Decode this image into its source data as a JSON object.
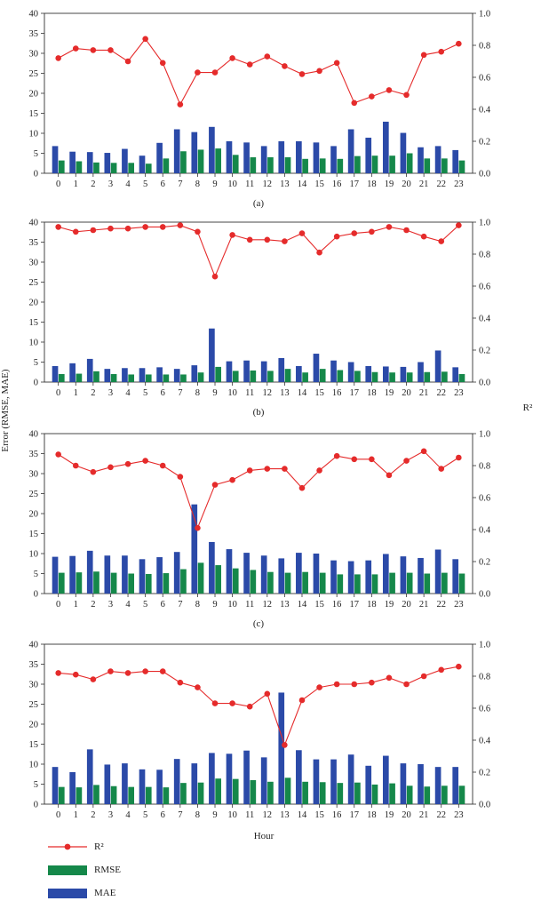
{
  "figure": {
    "y_left_label": "Error (RMSE, MAE)",
    "y_right_label": "R²",
    "x_label": "Hour",
    "colors": {
      "mae": "#2b4aa8",
      "rmse": "#15884a",
      "r2": "#e52b2b"
    }
  },
  "legend": {
    "r2": "R²",
    "rmse": "RMSE",
    "mae": "MAE"
  },
  "chart_data": [
    {
      "type": "bar",
      "panel_label": "(a)",
      "x": [
        0,
        1,
        2,
        3,
        4,
        5,
        6,
        7,
        8,
        9,
        10,
        11,
        12,
        13,
        14,
        15,
        16,
        17,
        18,
        19,
        20,
        21,
        22,
        23
      ],
      "ylim": [
        0,
        40
      ],
      "y2lim": [
        0,
        1.0
      ],
      "yticks": [
        "0",
        "5",
        "10",
        "15",
        "20",
        "25",
        "30",
        "35",
        "40"
      ],
      "y2ticks": [
        "0.0",
        "0.2",
        "0.4",
        "0.6",
        "0.8",
        "1.0"
      ],
      "series": [
        {
          "name": "MAE",
          "kind": "bar",
          "values": [
            6.8,
            5.4,
            5.3,
            5.1,
            6.1,
            4.4,
            7.6,
            11.0,
            10.3,
            11.6,
            8.0,
            7.7,
            6.8,
            8.0,
            8.0,
            7.7,
            6.8,
            11.0,
            8.9,
            12.9,
            10.1,
            6.5,
            6.8,
            5.8
          ]
        },
        {
          "name": "RMSE",
          "kind": "bar",
          "values": [
            3.2,
            3.0,
            2.7,
            2.6,
            2.6,
            2.4,
            3.7,
            5.5,
            5.9,
            6.2,
            4.6,
            4.0,
            4.0,
            4.0,
            3.6,
            3.7,
            3.6,
            4.3,
            4.4,
            4.4,
            5.0,
            3.7,
            3.7,
            3.2
          ]
        },
        {
          "name": "R²",
          "kind": "line",
          "axis": "right",
          "values": [
            0.72,
            0.78,
            0.77,
            0.77,
            0.7,
            0.84,
            0.69,
            0.43,
            0.63,
            0.63,
            0.72,
            0.68,
            0.73,
            0.67,
            0.62,
            0.64,
            0.69,
            0.44,
            0.48,
            0.52,
            0.49,
            0.74,
            0.76,
            0.81
          ]
        }
      ]
    },
    {
      "type": "bar",
      "panel_label": "(b)",
      "x": [
        0,
        1,
        2,
        3,
        4,
        5,
        6,
        7,
        8,
        9,
        10,
        11,
        12,
        13,
        14,
        15,
        16,
        17,
        18,
        19,
        20,
        21,
        22,
        23
      ],
      "ylim": [
        0,
        40
      ],
      "y2lim": [
        0,
        1.0
      ],
      "yticks": [
        "0",
        "5",
        "10",
        "15",
        "20",
        "25",
        "30",
        "35",
        "40"
      ],
      "y2ticks": [
        "0.0",
        "0.2",
        "0.4",
        "0.6",
        "0.8",
        "1.0"
      ],
      "series": [
        {
          "name": "MAE",
          "kind": "bar",
          "values": [
            4.0,
            4.7,
            5.8,
            3.3,
            3.5,
            3.5,
            3.7,
            3.3,
            4.2,
            13.4,
            5.2,
            5.4,
            5.2,
            6.0,
            4.0,
            7.1,
            5.4,
            5.0,
            4.0,
            3.9,
            3.8,
            5.0,
            7.9,
            3.7
          ]
        },
        {
          "name": "RMSE",
          "kind": "bar",
          "values": [
            2.0,
            2.1,
            2.7,
            2.0,
            1.9,
            1.9,
            1.9,
            1.9,
            2.4,
            3.8,
            2.8,
            2.9,
            2.8,
            3.3,
            2.4,
            3.3,
            3.0,
            2.8,
            2.5,
            2.4,
            2.4,
            2.5,
            2.6,
            2.0
          ]
        },
        {
          "name": "R²",
          "kind": "line",
          "axis": "right",
          "values": [
            0.97,
            0.94,
            0.95,
            0.96,
            0.96,
            0.97,
            0.97,
            0.98,
            0.94,
            0.66,
            0.92,
            0.89,
            0.89,
            0.88,
            0.93,
            0.81,
            0.91,
            0.93,
            0.94,
            0.97,
            0.95,
            0.91,
            0.88,
            0.98
          ]
        }
      ]
    },
    {
      "type": "bar",
      "panel_label": "(c)",
      "x": [
        0,
        1,
        2,
        3,
        4,
        5,
        6,
        7,
        8,
        9,
        10,
        11,
        12,
        13,
        14,
        15,
        16,
        17,
        18,
        19,
        20,
        21,
        22,
        23
      ],
      "ylim": [
        0,
        40
      ],
      "y2lim": [
        0,
        1.0
      ],
      "yticks": [
        "0",
        "5",
        "10",
        "15",
        "20",
        "25",
        "30",
        "35",
        "40"
      ],
      "y2ticks": [
        "0.0",
        "0.2",
        "0.4",
        "0.6",
        "0.8",
        "1.0"
      ],
      "series": [
        {
          "name": "MAE",
          "kind": "bar",
          "values": [
            9.2,
            9.4,
            10.7,
            9.5,
            9.5,
            8.6,
            9.1,
            10.4,
            22.3,
            12.9,
            11.1,
            10.2,
            9.5,
            8.8,
            10.2,
            10.0,
            8.3,
            8.1,
            8.3,
            9.9,
            9.3,
            8.9,
            11.0,
            8.6
          ]
        },
        {
          "name": "RMSE",
          "kind": "bar",
          "values": [
            5.2,
            5.3,
            5.5,
            5.2,
            5.0,
            4.9,
            5.1,
            6.1,
            7.7,
            7.1,
            6.3,
            5.9,
            5.4,
            5.2,
            5.4,
            5.2,
            4.8,
            4.8,
            4.8,
            5.2,
            5.2,
            5.0,
            5.2,
            5.0
          ]
        },
        {
          "name": "R²",
          "kind": "line",
          "axis": "right",
          "values": [
            0.87,
            0.8,
            0.76,
            0.79,
            0.81,
            0.83,
            0.8,
            0.73,
            0.41,
            0.68,
            0.71,
            0.77,
            0.78,
            0.78,
            0.66,
            0.77,
            0.86,
            0.84,
            0.84,
            0.74,
            0.83,
            0.89,
            0.78,
            0.85
          ]
        }
      ]
    },
    {
      "type": "bar",
      "panel_label": "(d)",
      "x": [
        0,
        1,
        2,
        3,
        4,
        5,
        6,
        7,
        8,
        9,
        10,
        11,
        12,
        13,
        14,
        15,
        16,
        17,
        18,
        19,
        20,
        21,
        22,
        23
      ],
      "ylim": [
        0,
        40
      ],
      "y2lim": [
        0,
        1.0
      ],
      "yticks": [
        "0",
        "5",
        "10",
        "15",
        "20",
        "25",
        "30",
        "35",
        "40"
      ],
      "y2ticks": [
        "0.0",
        "0.2",
        "0.4",
        "0.6",
        "0.8",
        "1.0"
      ],
      "series": [
        {
          "name": "MAE",
          "kind": "bar",
          "values": [
            9.3,
            8.0,
            13.7,
            9.9,
            10.2,
            8.7,
            8.6,
            11.3,
            10.2,
            12.8,
            12.6,
            13.4,
            11.7,
            27.9,
            13.5,
            11.2,
            11.2,
            12.4,
            9.6,
            12.1,
            10.2,
            10.0,
            9.3,
            9.3
          ]
        },
        {
          "name": "RMSE",
          "kind": "bar",
          "values": [
            4.3,
            4.2,
            4.8,
            4.5,
            4.3,
            4.3,
            4.2,
            5.3,
            5.4,
            6.4,
            6.3,
            6.0,
            5.6,
            6.6,
            5.6,
            5.5,
            5.3,
            5.4,
            4.9,
            5.2,
            4.6,
            4.4,
            4.6,
            4.6
          ]
        },
        {
          "name": "R²",
          "kind": "line",
          "axis": "right",
          "values": [
            0.82,
            0.81,
            0.78,
            0.83,
            0.82,
            0.83,
            0.83,
            0.76,
            0.73,
            0.63,
            0.63,
            0.61,
            0.69,
            0.37,
            0.65,
            0.73,
            0.75,
            0.75,
            0.76,
            0.79,
            0.75,
            0.8,
            0.84,
            0.86
          ]
        }
      ]
    }
  ]
}
